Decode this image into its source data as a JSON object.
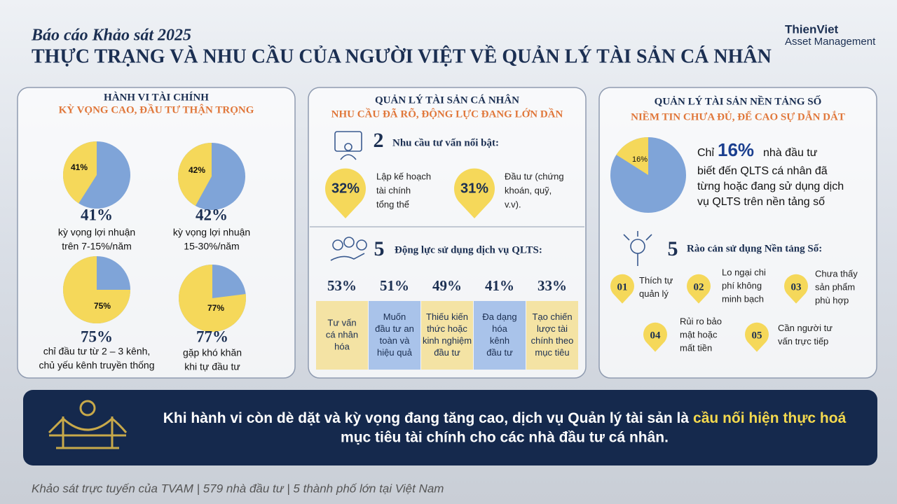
{
  "header": {
    "subtitle": "Báo cáo Khảo sát 2025",
    "title": "THỰC TRẠNG VÀ NHU CẦU CỦA NGƯỜI VIỆT VỀ QUẢN LÝ TÀI SẢN CÁ NHÂN",
    "logo": {
      "name": "ThienViet",
      "tagline": "Asset Management"
    }
  },
  "panels": [
    {
      "title": "HÀNH VI TÀI CHÍNH",
      "subtitle": "KỲ VỌNG CAO, ĐẦU TƯ THẬN TRỌNG",
      "pies": [
        {
          "value": 41,
          "label": "41%",
          "caption": [
            "kỳ vọng  lợi nhuận",
            "trên 7-15%/năm"
          ]
        },
        {
          "value": 42,
          "label": "42%",
          "caption": [
            "kỳ vọng lợi nhuận",
            "15-30%/năm"
          ]
        },
        {
          "value": 75,
          "label": "75%",
          "caption": [
            "chỉ đầu tư từ 2 – 3 kênh,",
            "chủ yếu kênh truyền thống"
          ]
        },
        {
          "value": 77,
          "label": "77%",
          "caption": [
            "gặp khó khăn",
            "khi tự đầu tư"
          ]
        }
      ]
    },
    {
      "title": "QUẢN LÝ TÀI SẢN CÁ NHÂN",
      "subtitle": "NHU CẦU ĐÃ RÕ, ĐỘNG LỰC ĐANG LỚN DẦN",
      "needs": {
        "count": "2",
        "heading": "Nhu cầu tư vấn nổi bật:",
        "items": [
          {
            "label": "32%",
            "text": [
              "Lập kế hoạch",
              "tài chính",
              "tổng thể"
            ]
          },
          {
            "label": "31%",
            "text": [
              "Đầu tư (chứng",
              "khoán, quỹ,",
              "v.v)."
            ]
          }
        ]
      },
      "drivers": {
        "count": "5",
        "heading": "Động lực sử dụng dịch vụ QLTS:",
        "items": [
          {
            "label": "53%",
            "text": [
              "Tư vấn",
              "cá nhân",
              "hóa"
            ]
          },
          {
            "label": "51%",
            "text": [
              "Muốn",
              "đầu tư an",
              "toàn và",
              "hiệu quả"
            ]
          },
          {
            "label": "49%",
            "text": [
              "Thiếu kiến",
              "thức hoặc",
              "kinh nghiệm",
              "đầu tư"
            ]
          },
          {
            "label": "41%",
            "text": [
              "Đa dạng",
              "hóa",
              "kênh",
              "đầu tư"
            ]
          },
          {
            "label": "33%",
            "text": [
              "Tạo chiến",
              "lược tài",
              "chính theo",
              "mục tiêu"
            ]
          }
        ]
      }
    },
    {
      "title": "QUẢN LÝ TÀI SẢN NỀN TẢNG SỐ",
      "subtitle": "NIỀM TIN CHƯA ĐỦ, ĐỂ CAO SỰ DẪN DẮT",
      "pie": {
        "value": 16,
        "label": "16%",
        "prefix": "Chỉ",
        "text": [
          "nhà đầu tư",
          "biết đến QLTS cá nhân đã",
          "từng hoặc đang sử dụng dịch",
          "vụ QLTS trên nền tảng số"
        ]
      },
      "barriers": {
        "count": "5",
        "heading": "Rào cản sử dụng Nền tảng Số:",
        "items": [
          {
            "number": "01",
            "text": [
              "Thích tự",
              "quản lý"
            ]
          },
          {
            "number": "02",
            "text": [
              "Lo ngại chi",
              "phí không",
              "minh bạch"
            ]
          },
          {
            "number": "03",
            "text": [
              "Chưa thấy",
              "sản phẩm",
              "phù hợp"
            ]
          },
          {
            "number": "04",
            "text": [
              "Rủi ro bảo",
              "mật hoặc",
              "mất tiền"
            ]
          },
          {
            "number": "05",
            "text": [
              "Cần người tư",
              "vấn trực tiếp"
            ]
          }
        ]
      }
    }
  ],
  "banner": {
    "text": "Khi hành vi còn dè dặt và kỳ vọng đang tăng cao, dịch vụ Quản lý tài sản là",
    "highlight": "cầu nối hiện thực hoá",
    "text2": "mục tiêu tài chính cho các nhà đầu tư cá nhân."
  },
  "footer": "Khảo sát trực tuyến của TVAM | 579 nhà đầu tư | 5 thành phố lớn tại Việt Nam"
}
